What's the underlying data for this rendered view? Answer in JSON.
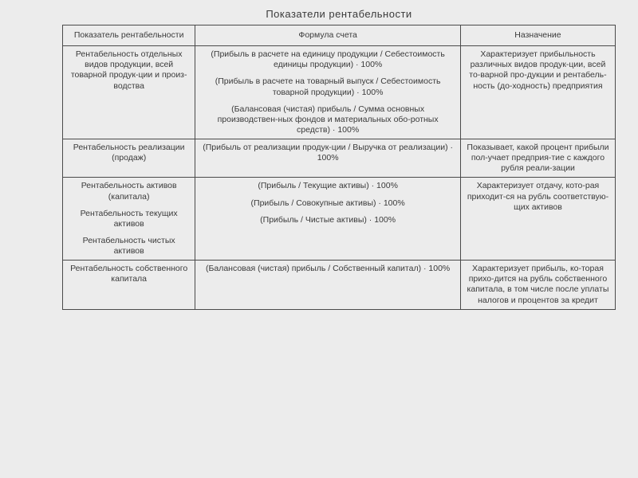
{
  "title": "Показатели рентабельности",
  "columns": [
    "Показатель рентабельности",
    "Формула счета",
    "Назначение"
  ],
  "rows": [
    {
      "indicator": [
        "Рентабельность отдельных видов продукции, всей товарной продук-ции и произ-водства"
      ],
      "formula": [
        "(Прибыль в расчете на единицу продукции / Себестоимость единицы продукции) · 100%",
        "(Прибыль в расчете на товарный выпуск / Себестоимость товарной продукции) · 100%",
        "(Балансовая (чистая) прибыль / Сумма основных производствен-ных фондов и материальных обо-ротных средств) · 100%"
      ],
      "purpose": [
        "Характеризует прибыльность различных видов продук-ции, всей то-варной про-дукции и рентабель-ность (до-ходность) предприятия"
      ]
    },
    {
      "indicator": [
        "Рентабельность реализации (продаж)"
      ],
      "formula": [
        "(Прибыль от реализации продук-ции / Выручка от реализации) · 100%"
      ],
      "purpose": [
        "Показывает, какой процент прибыли пол-учает предприя-тие с каждого рубля реали-зации"
      ]
    },
    {
      "indicator": [
        "Рентабельность активов (капитала)",
        "Рентабельность текущих активов",
        "Рентабельность чистых активов"
      ],
      "formula": [
        "(Прибыль / Текущие активы) · 100%",
        "(Прибыль / Совокупные активы) · 100%",
        "(Прибыль / Чистые активы) · 100%"
      ],
      "purpose": [
        "Характеризует отдачу, кото-рая приходит-ся на рубль соответствую-щих активов"
      ]
    },
    {
      "indicator": [
        "Рентабельность собственного капитала"
      ],
      "formula": [
        "(Балансовая (чистая) прибыль / Собственный капитал) · 100%"
      ],
      "purpose": [
        "Характеризует прибыль, ко-торая прихо-дится на рубль собственного капитала, в том числе после уплаты налогов и процентов за кредит"
      ]
    }
  ]
}
